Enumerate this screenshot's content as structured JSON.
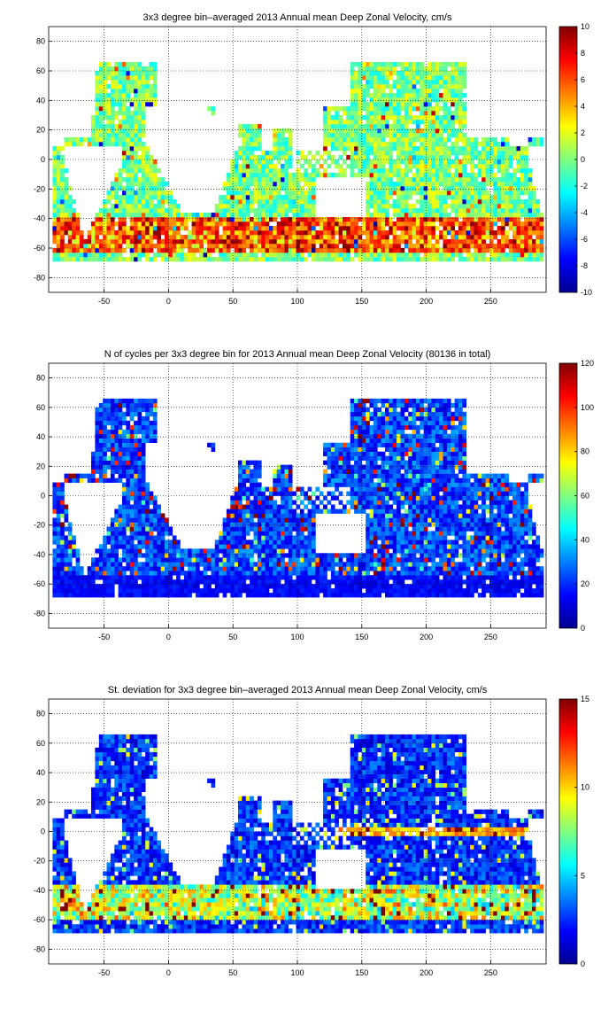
{
  "chart_data": [
    {
      "type": "heatmap",
      "title": "3x3 degree bin–averaged 2013 Annual mean Deep Zonal Velocity, cm/s",
      "xlim": [
        -93,
        293
      ],
      "ylim": [
        -90,
        90
      ],
      "x_ticks": [
        -50,
        0,
        50,
        100,
        150,
        200,
        250
      ],
      "y_ticks": [
        80,
        60,
        40,
        20,
        0,
        -20,
        -40,
        -60,
        -80
      ],
      "grid": true,
      "colorbar": {
        "colormap": "jet",
        "range": [
          -10,
          10
        ],
        "ticks": [
          10,
          8,
          6,
          4,
          2,
          0,
          -2,
          -4,
          -6,
          -8,
          -10
        ]
      },
      "bin_size_deg": 3
    },
    {
      "type": "heatmap",
      "title": "N of cycles per 3x3 degree bin for 2013 Annual mean Deep Zonal Velocity (80136 in total)",
      "xlim": [
        -93,
        293
      ],
      "ylim": [
        -90,
        90
      ],
      "x_ticks": [
        -50,
        0,
        50,
        100,
        150,
        200,
        250
      ],
      "y_ticks": [
        80,
        60,
        40,
        20,
        0,
        -20,
        -40,
        -60,
        -80
      ],
      "grid": true,
      "colorbar": {
        "colormap": "jet",
        "range": [
          0,
          120
        ],
        "ticks": [
          120,
          100,
          80,
          60,
          40,
          20,
          0
        ]
      },
      "bin_size_deg": 3
    },
    {
      "type": "heatmap",
      "title": "St. deviation for 3x3 degree bin–averaged 2013 Annual mean Deep Zonal Velocity, cm/s",
      "xlim": [
        -93,
        293
      ],
      "ylim": [
        -90,
        90
      ],
      "x_ticks": [
        -50,
        0,
        50,
        100,
        150,
        200,
        250
      ],
      "y_ticks": [
        80,
        60,
        40,
        20,
        0,
        -20,
        -40,
        -60,
        -80
      ],
      "grid": true,
      "colorbar": {
        "colormap": "jet",
        "range": [
          0,
          15
        ],
        "ticks": [
          15,
          10,
          5,
          0
        ]
      },
      "bin_size_deg": 3
    }
  ]
}
